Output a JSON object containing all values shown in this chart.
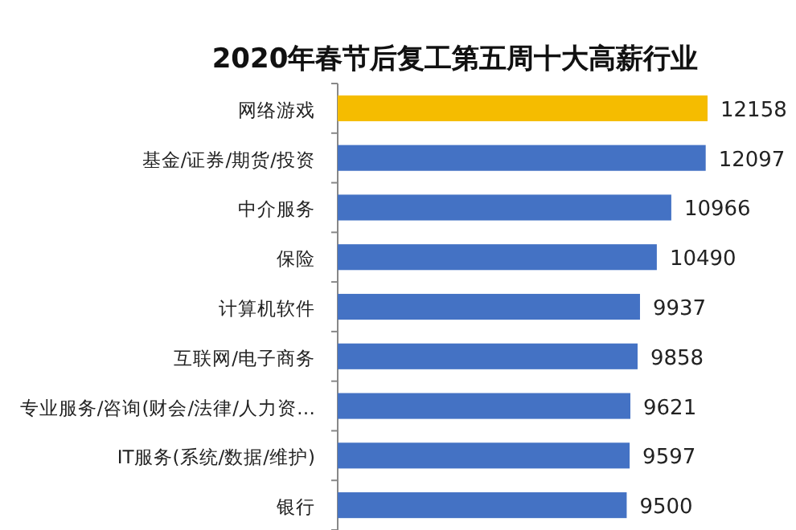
{
  "chart_data": {
    "type": "bar",
    "orientation": "horizontal",
    "title": "2020年春节后复工第五周十大高薪行业",
    "categories": [
      "网络游戏",
      "基金/证券/期货/投资",
      "中介服务",
      "保险",
      "计算机软件",
      "互联网/电子商务",
      "专业服务/咨询(财会/法律/人力资…",
      "IT服务(系统/数据/维护)",
      "银行"
    ],
    "values": [
      12158,
      12097,
      10966,
      10490,
      9937,
      9858,
      9621,
      9597,
      9500
    ],
    "colors": [
      "#f5bc00",
      "#4472c4",
      "#4472c4",
      "#4472c4",
      "#4472c4",
      "#4472c4",
      "#4472c4",
      "#4472c4",
      "#4472c4"
    ],
    "data_labels": true,
    "relative": false
  }
}
